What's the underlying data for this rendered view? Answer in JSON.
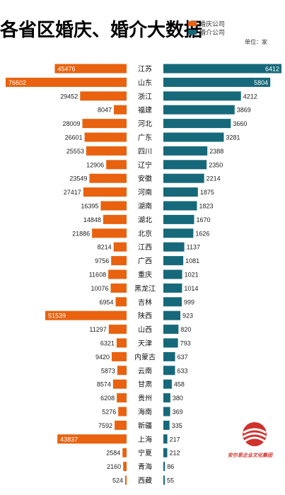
{
  "title": "各省区婚庆、婚介大数据",
  "unit": "单位：家",
  "logo_text": "安尔思企业文化集团",
  "colors": {
    "wedding": "#e8620f",
    "matchmaking": "#16697a",
    "label_bg": "#ffffff"
  },
  "chart_data": {
    "type": "bar",
    "orientation": "diverging-horizontal",
    "legend": [
      "婚庆公司",
      "婚介公司"
    ],
    "legend_position": "top-right",
    "series": [
      {
        "name": "婚庆公司",
        "values": [
          45476,
          76602,
          29452,
          8047,
          28009,
          26601,
          25553,
          12906,
          23549,
          27417,
          16395,
          14848,
          21886,
          8214,
          9756,
          11608,
          10076,
          6954,
          51539,
          11297,
          6321,
          9420,
          5873,
          8574,
          6208,
          5276,
          7592,
          43837,
          2584,
          2160,
          524
        ]
      },
      {
        "name": "婚介公司",
        "values": [
          6412,
          5804,
          4212,
          3869,
          3660,
          3281,
          2388,
          2350,
          2214,
          1875,
          1823,
          1670,
          1626,
          1137,
          1081,
          1021,
          1014,
          999,
          923,
          820,
          793,
          637,
          633,
          458,
          380,
          369,
          335,
          217,
          212,
          86,
          55
        ]
      }
    ],
    "categories": [
      "江苏",
      "山东",
      "浙江",
      "福建",
      "河北",
      "广东",
      "四川",
      "辽宁",
      "安徽",
      "河南",
      "湖南",
      "湖北",
      "北京",
      "江西",
      "广西",
      "重庆",
      "黑龙江",
      "吉林",
      "陕西",
      "山西",
      "天津",
      "内蒙古",
      "云南",
      "甘肃",
      "贵州",
      "海南",
      "新疆",
      "上海",
      "宁夏",
      "青海",
      "西藏"
    ],
    "grid": false
  }
}
